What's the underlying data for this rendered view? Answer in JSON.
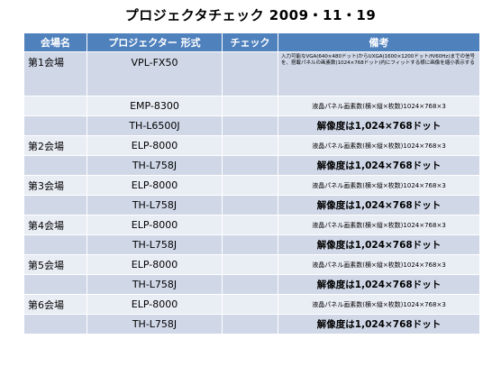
{
  "title": "プロジェクタチェック 2009・11・19",
  "headers": {
    "venue": "会場名",
    "projector": "プロジェクター 形式",
    "check": "チェック",
    "notes": "備考"
  },
  "rows": [
    {
      "venue": "第1会場",
      "projector": "VPL-FX50",
      "check": "",
      "note": "入力可能なVGA(640×480ドット)からUXGA(1600×1200ドット/fV60Hz)までの信号を、搭載パネルの画素数(1024×768ドット)内にフィットする様に画像を縮小表示する"
    },
    {
      "venue": "",
      "projector": "EMP-8300",
      "check": "",
      "note": "液晶パネル画素数(横×縦×枚数)1024×768×3"
    },
    {
      "venue": "",
      "projector": "TH-L6500J",
      "check": "",
      "note": "解像度は1,024×768ドット"
    },
    {
      "venue": "第2会場",
      "projector": "ELP-8000",
      "check": "",
      "note": "液晶パネル画素数(横×縦×枚数)1024×768×3"
    },
    {
      "venue": "",
      "projector": "TH-L758J",
      "check": "",
      "note": "解像度は1,024×768ドット"
    },
    {
      "venue": "第3会場",
      "projector": "ELP-8000",
      "check": "",
      "note": "液晶パネル画素数(横×縦×枚数)1024×768×3"
    },
    {
      "venue": "",
      "projector": "TH-L758J",
      "check": "",
      "note": "解像度は1,024×768ドット"
    },
    {
      "venue": "第4会場",
      "projector": "ELP-8000",
      "check": "",
      "note": "液晶パネル画素数(横×縦×枚数)1024×768×3"
    },
    {
      "venue": "",
      "projector": "TH-L758J",
      "check": "",
      "note": "解像度は1,024×768ドット"
    },
    {
      "venue": "第5会場",
      "projector": "ELP-8000",
      "check": "",
      "note": "液晶パネル画素数(横×縦×枚数)1024×768×3"
    },
    {
      "venue": "",
      "projector": "TH-L758J",
      "check": "",
      "note": "解像度は1,024×768ドット"
    },
    {
      "venue": "第6会場",
      "projector": "ELP-8000",
      "check": "",
      "note": "液晶パネル画素数(横×縦×枚数)1024×768×3"
    },
    {
      "venue": "",
      "projector": "TH-L758J",
      "check": "",
      "note": "解像度は1,024×768ドット"
    }
  ]
}
